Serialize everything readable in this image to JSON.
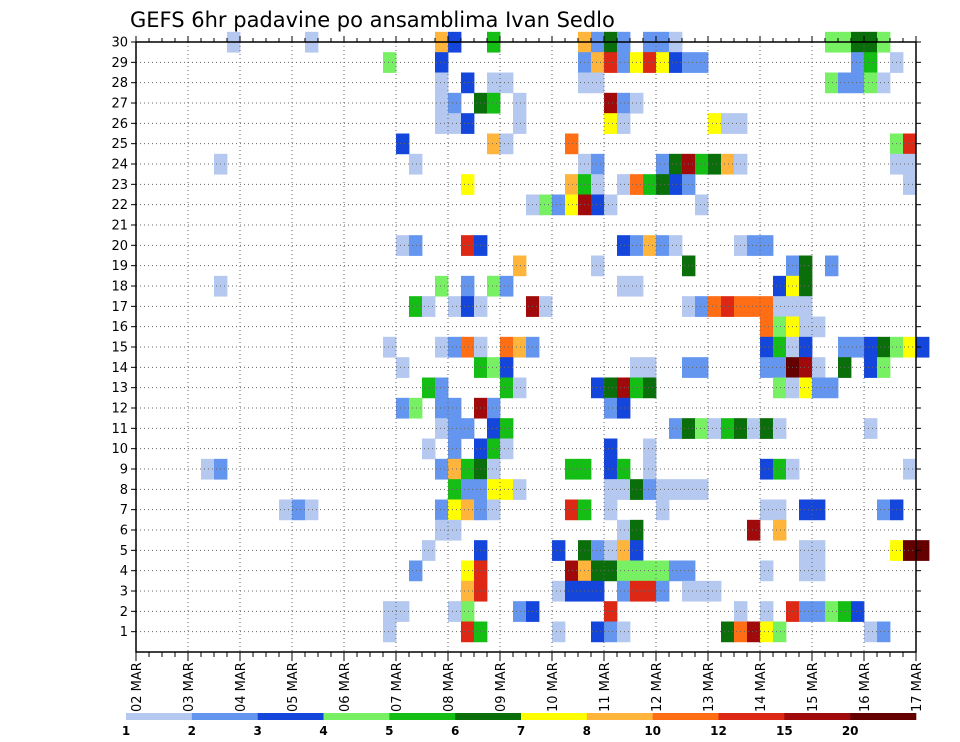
{
  "chart_data": {
    "type": "heatmap",
    "title": "GEFS 6hr padavine po ansamblima Ivan Sedlo",
    "xlabel": "",
    "ylabel": "",
    "x_start": "02 MAR 00Z",
    "x_step_hours": 6,
    "x_steps": 60,
    "x_tick_labels": [
      "02 MAR",
      "03 MAR",
      "04 MAR",
      "05 MAR",
      "06 MAR",
      "07 MAR",
      "08 MAR",
      "09 MAR",
      "10 MAR",
      "11 MAR",
      "12 MAR",
      "13 MAR",
      "14 MAR",
      "15 MAR",
      "16 MAR",
      "17 MAR"
    ],
    "y_tick_labels": [
      "1",
      "2",
      "3",
      "4",
      "5",
      "6",
      "7",
      "8",
      "9",
      "10",
      "11",
      "12",
      "13",
      "14",
      "15",
      "16",
      "17",
      "18",
      "19",
      "20",
      "21",
      "22",
      "23",
      "24",
      "25",
      "26",
      "27",
      "28",
      "29",
      "30"
    ],
    "ylim": [
      0,
      30
    ],
    "grid": true,
    "legend_placement": "bottom",
    "color_scale": {
      "colors": [
        "#b4c8f0",
        "#6496f0",
        "#1446dc",
        "#78f064",
        "#14be14",
        "#0a6e0a",
        "#ffff00",
        "#ffb43c",
        "#ff6e14",
        "#dc2814",
        "#a00a0a",
        "#640000"
      ],
      "labels": [
        "1",
        "2",
        "3",
        "4",
        "5",
        "6",
        "7",
        "8",
        "10",
        "12",
        "15",
        "20"
      ]
    },
    "cells": [
      [
        30,
        7,
        1
      ],
      [
        30,
        13,
        1
      ],
      [
        30,
        23,
        8
      ],
      [
        30,
        24,
        3
      ],
      [
        30,
        27,
        5
      ],
      [
        30,
        34,
        8
      ],
      [
        30,
        35,
        2
      ],
      [
        30,
        36,
        6
      ],
      [
        30,
        37,
        2
      ],
      [
        30,
        39,
        2
      ],
      [
        30,
        40,
        2
      ],
      [
        30,
        41,
        1
      ],
      [
        30,
        53,
        4
      ],
      [
        30,
        54,
        4
      ],
      [
        30,
        55,
        6
      ],
      [
        30,
        56,
        6
      ],
      [
        30,
        57,
        4
      ],
      [
        29,
        19,
        4
      ],
      [
        29,
        23,
        3
      ],
      [
        29,
        34,
        2
      ],
      [
        29,
        35,
        8
      ],
      [
        29,
        36,
        10
      ],
      [
        29,
        37,
        2
      ],
      [
        29,
        38,
        7
      ],
      [
        29,
        39,
        10
      ],
      [
        29,
        40,
        7
      ],
      [
        29,
        41,
        3
      ],
      [
        29,
        42,
        2
      ],
      [
        29,
        43,
        2
      ],
      [
        29,
        55,
        2
      ],
      [
        29,
        56,
        5
      ],
      [
        29,
        58,
        1
      ],
      [
        28,
        23,
        1
      ],
      [
        28,
        25,
        3
      ],
      [
        28,
        27,
        1
      ],
      [
        28,
        28,
        1
      ],
      [
        28,
        34,
        1
      ],
      [
        28,
        35,
        1
      ],
      [
        28,
        53,
        4
      ],
      [
        28,
        54,
        2
      ],
      [
        28,
        55,
        2
      ],
      [
        28,
        56,
        4
      ],
      [
        28,
        57,
        1
      ],
      [
        27,
        23,
        1
      ],
      [
        27,
        24,
        2
      ],
      [
        27,
        26,
        6
      ],
      [
        27,
        27,
        5
      ],
      [
        27,
        29,
        1
      ],
      [
        27,
        36,
        11
      ],
      [
        27,
        37,
        2
      ],
      [
        27,
        38,
        1
      ],
      [
        26,
        23,
        1
      ],
      [
        26,
        24,
        1
      ],
      [
        26,
        25,
        3
      ],
      [
        26,
        29,
        1
      ],
      [
        26,
        36,
        7
      ],
      [
        26,
        37,
        1
      ],
      [
        26,
        44,
        7
      ],
      [
        26,
        45,
        1
      ],
      [
        26,
        46,
        1
      ],
      [
        25,
        20,
        3
      ],
      [
        25,
        27,
        8
      ],
      [
        25,
        28,
        1
      ],
      [
        25,
        33,
        9
      ],
      [
        25,
        58,
        4
      ],
      [
        25,
        59,
        10
      ],
      [
        24,
        6,
        1
      ],
      [
        24,
        21,
        1
      ],
      [
        24,
        34,
        1
      ],
      [
        24,
        35,
        2
      ],
      [
        24,
        40,
        2
      ],
      [
        24,
        41,
        6
      ],
      [
        24,
        42,
        11
      ],
      [
        24,
        43,
        5
      ],
      [
        24,
        44,
        6
      ],
      [
        24,
        45,
        8
      ],
      [
        24,
        46,
        1
      ],
      [
        24,
        58,
        1
      ],
      [
        24,
        59,
        1
      ],
      [
        23,
        25,
        7
      ],
      [
        23,
        33,
        8
      ],
      [
        23,
        34,
        5
      ],
      [
        23,
        35,
        1
      ],
      [
        23,
        37,
        1
      ],
      [
        23,
        38,
        9
      ],
      [
        23,
        39,
        5
      ],
      [
        23,
        40,
        6
      ],
      [
        23,
        41,
        3
      ],
      [
        23,
        42,
        2
      ],
      [
        23,
        59,
        1
      ],
      [
        22,
        30,
        1
      ],
      [
        22,
        31,
        4
      ],
      [
        22,
        32,
        2
      ],
      [
        22,
        33,
        7
      ],
      [
        22,
        34,
        11
      ],
      [
        22,
        35,
        3
      ],
      [
        22,
        36,
        1
      ],
      [
        22,
        43,
        1
      ],
      [
        20,
        20,
        1
      ],
      [
        20,
        21,
        2
      ],
      [
        20,
        25,
        10
      ],
      [
        20,
        26,
        3
      ],
      [
        20,
        37,
        3
      ],
      [
        20,
        38,
        2
      ],
      [
        20,
        39,
        8
      ],
      [
        20,
        40,
        2
      ],
      [
        20,
        41,
        1
      ],
      [
        20,
        46,
        1
      ],
      [
        20,
        47,
        2
      ],
      [
        20,
        48,
        2
      ],
      [
        19,
        29,
        8
      ],
      [
        19,
        35,
        1
      ],
      [
        19,
        42,
        6
      ],
      [
        19,
        50,
        2
      ],
      [
        19,
        51,
        6
      ],
      [
        19,
        53,
        2
      ],
      [
        18,
        6,
        1
      ],
      [
        18,
        23,
        4
      ],
      [
        18,
        25,
        2
      ],
      [
        18,
        27,
        4
      ],
      [
        18,
        28,
        2
      ],
      [
        18,
        37,
        1
      ],
      [
        18,
        38,
        1
      ],
      [
        18,
        49,
        3
      ],
      [
        18,
        50,
        7
      ],
      [
        18,
        51,
        6
      ],
      [
        17,
        21,
        5
      ],
      [
        17,
        22,
        1
      ],
      [
        17,
        24,
        1
      ],
      [
        17,
        25,
        3
      ],
      [
        17,
        26,
        1
      ],
      [
        17,
        30,
        11
      ],
      [
        17,
        31,
        1
      ],
      [
        17,
        42,
        1
      ],
      [
        17,
        43,
        2
      ],
      [
        17,
        44,
        9
      ],
      [
        17,
        45,
        10
      ],
      [
        17,
        46,
        9
      ],
      [
        17,
        47,
        9
      ],
      [
        17,
        48,
        9
      ],
      [
        17,
        49,
        1
      ],
      [
        17,
        50,
        1
      ],
      [
        17,
        51,
        1
      ],
      [
        16,
        48,
        9
      ],
      [
        16,
        49,
        4
      ],
      [
        16,
        50,
        7
      ],
      [
        16,
        51,
        1
      ],
      [
        16,
        52,
        1
      ],
      [
        15,
        19,
        1
      ],
      [
        15,
        23,
        1
      ],
      [
        15,
        24,
        2
      ],
      [
        15,
        25,
        9
      ],
      [
        15,
        26,
        1
      ],
      [
        15,
        28,
        9
      ],
      [
        15,
        29,
        8
      ],
      [
        15,
        30,
        2
      ],
      [
        15,
        48,
        3
      ],
      [
        15,
        49,
        5
      ],
      [
        15,
        50,
        1
      ],
      [
        15,
        51,
        3
      ],
      [
        15,
        54,
        2
      ],
      [
        15,
        55,
        2
      ],
      [
        15,
        56,
        3
      ],
      [
        15,
        57,
        6
      ],
      [
        15,
        58,
        4
      ],
      [
        15,
        59,
        7
      ],
      [
        15,
        60,
        3
      ],
      [
        14,
        20,
        1
      ],
      [
        14,
        26,
        5
      ],
      [
        14,
        27,
        4
      ],
      [
        14,
        28,
        3
      ],
      [
        14,
        38,
        1
      ],
      [
        14,
        39,
        1
      ],
      [
        14,
        42,
        2
      ],
      [
        14,
        43,
        2
      ],
      [
        14,
        48,
        2
      ],
      [
        14,
        49,
        2
      ],
      [
        14,
        50,
        12
      ],
      [
        14,
        51,
        11
      ],
      [
        14,
        52,
        1
      ],
      [
        14,
        54,
        6
      ],
      [
        14,
        56,
        3
      ],
      [
        14,
        57,
        4
      ],
      [
        13,
        22,
        5
      ],
      [
        13,
        23,
        2
      ],
      [
        13,
        28,
        5
      ],
      [
        13,
        29,
        1
      ],
      [
        13,
        35,
        3
      ],
      [
        13,
        36,
        6
      ],
      [
        13,
        37,
        11
      ],
      [
        13,
        38,
        5
      ],
      [
        13,
        39,
        6
      ],
      [
        13,
        49,
        4
      ],
      [
        13,
        50,
        1
      ],
      [
        13,
        51,
        7
      ],
      [
        13,
        52,
        2
      ],
      [
        13,
        53,
        2
      ],
      [
        12,
        20,
        2
      ],
      [
        12,
        21,
        4
      ],
      [
        12,
        23,
        2
      ],
      [
        12,
        24,
        2
      ],
      [
        12,
        26,
        11
      ],
      [
        12,
        27,
        2
      ],
      [
        12,
        36,
        2
      ],
      [
        12,
        37,
        3
      ],
      [
        11,
        23,
        1
      ],
      [
        11,
        24,
        2
      ],
      [
        11,
        25,
        2
      ],
      [
        11,
        27,
        3
      ],
      [
        11,
        28,
        5
      ],
      [
        11,
        41,
        2
      ],
      [
        11,
        42,
        6
      ],
      [
        11,
        43,
        4
      ],
      [
        11,
        44,
        1
      ],
      [
        11,
        45,
        5
      ],
      [
        11,
        46,
        6
      ],
      [
        11,
        47,
        1
      ],
      [
        11,
        48,
        6
      ],
      [
        11,
        49,
        1
      ],
      [
        11,
        56,
        1
      ],
      [
        10,
        22,
        1
      ],
      [
        10,
        24,
        2
      ],
      [
        10,
        26,
        3
      ],
      [
        10,
        27,
        5
      ],
      [
        10,
        28,
        1
      ],
      [
        10,
        36,
        3
      ],
      [
        10,
        39,
        1
      ],
      [
        9,
        5,
        1
      ],
      [
        9,
        6,
        2
      ],
      [
        9,
        23,
        2
      ],
      [
        9,
        24,
        8
      ],
      [
        9,
        25,
        5
      ],
      [
        9,
        26,
        6
      ],
      [
        9,
        27,
        1
      ],
      [
        9,
        33,
        5
      ],
      [
        9,
        34,
        5
      ],
      [
        9,
        36,
        3
      ],
      [
        9,
        37,
        5
      ],
      [
        9,
        39,
        1
      ],
      [
        9,
        48,
        3
      ],
      [
        9,
        49,
        5
      ],
      [
        9,
        50,
        1
      ],
      [
        9,
        59,
        1
      ],
      [
        8,
        24,
        5
      ],
      [
        8,
        25,
        2
      ],
      [
        8,
        26,
        2
      ],
      [
        8,
        27,
        7
      ],
      [
        8,
        28,
        7
      ],
      [
        8,
        29,
        1
      ],
      [
        8,
        36,
        1
      ],
      [
        8,
        37,
        1
      ],
      [
        8,
        38,
        6
      ],
      [
        8,
        39,
        2
      ],
      [
        8,
        40,
        1
      ],
      [
        8,
        41,
        1
      ],
      [
        8,
        42,
        1
      ],
      [
        8,
        43,
        1
      ],
      [
        7,
        11,
        1
      ],
      [
        7,
        12,
        2
      ],
      [
        7,
        13,
        1
      ],
      [
        7,
        23,
        2
      ],
      [
        7,
        24,
        7
      ],
      [
        7,
        25,
        8
      ],
      [
        7,
        26,
        2
      ],
      [
        7,
        27,
        1
      ],
      [
        7,
        33,
        10
      ],
      [
        7,
        34,
        5
      ],
      [
        7,
        36,
        1
      ],
      [
        7,
        40,
        1
      ],
      [
        7,
        48,
        1
      ],
      [
        7,
        49,
        1
      ],
      [
        7,
        51,
        3
      ],
      [
        7,
        52,
        3
      ],
      [
        7,
        57,
        2
      ],
      [
        7,
        58,
        3
      ],
      [
        6,
        23,
        1
      ],
      [
        6,
        24,
        1
      ],
      [
        6,
        37,
        1
      ],
      [
        6,
        38,
        6
      ],
      [
        6,
        47,
        11
      ],
      [
        6,
        49,
        8
      ],
      [
        5,
        22,
        1
      ],
      [
        5,
        26,
        3
      ],
      [
        5,
        32,
        3
      ],
      [
        5,
        34,
        6
      ],
      [
        5,
        35,
        2
      ],
      [
        5,
        36,
        1
      ],
      [
        5,
        37,
        8
      ],
      [
        5,
        38,
        3
      ],
      [
        5,
        51,
        1
      ],
      [
        5,
        52,
        1
      ],
      [
        5,
        58,
        7
      ],
      [
        5,
        59,
        12
      ],
      [
        5,
        60,
        12
      ],
      [
        4,
        21,
        2
      ],
      [
        4,
        25,
        7
      ],
      [
        4,
        26,
        10
      ],
      [
        4,
        33,
        11
      ],
      [
        4,
        34,
        8
      ],
      [
        4,
        35,
        6
      ],
      [
        4,
        36,
        6
      ],
      [
        4,
        37,
        4
      ],
      [
        4,
        38,
        4
      ],
      [
        4,
        39,
        4
      ],
      [
        4,
        40,
        4
      ],
      [
        4,
        41,
        2
      ],
      [
        4,
        42,
        2
      ],
      [
        4,
        48,
        1
      ],
      [
        4,
        51,
        1
      ],
      [
        4,
        52,
        1
      ],
      [
        3,
        25,
        8
      ],
      [
        3,
        26,
        10
      ],
      [
        3,
        32,
        1
      ],
      [
        3,
        33,
        3
      ],
      [
        3,
        34,
        3
      ],
      [
        3,
        35,
        3
      ],
      [
        3,
        37,
        2
      ],
      [
        3,
        38,
        10
      ],
      [
        3,
        39,
        10
      ],
      [
        3,
        40,
        2
      ],
      [
        3,
        42,
        1
      ],
      [
        3,
        43,
        1
      ],
      [
        3,
        44,
        1
      ],
      [
        2,
        19,
        1
      ],
      [
        2,
        20,
        1
      ],
      [
        2,
        24,
        1
      ],
      [
        2,
        25,
        4
      ],
      [
        2,
        29,
        2
      ],
      [
        2,
        30,
        3
      ],
      [
        2,
        36,
        10
      ],
      [
        2,
        46,
        1
      ],
      [
        2,
        48,
        1
      ],
      [
        2,
        50,
        10
      ],
      [
        2,
        51,
        2
      ],
      [
        2,
        52,
        2
      ],
      [
        2,
        53,
        4
      ],
      [
        2,
        54,
        5
      ],
      [
        2,
        55,
        3
      ],
      [
        1,
        19,
        1
      ],
      [
        1,
        25,
        10
      ],
      [
        1,
        26,
        5
      ],
      [
        1,
        32,
        1
      ],
      [
        1,
        35,
        3
      ],
      [
        1,
        36,
        2
      ],
      [
        1,
        37,
        1
      ],
      [
        1,
        45,
        6
      ],
      [
        1,
        46,
        9
      ],
      [
        1,
        47,
        11
      ],
      [
        1,
        48,
        7
      ],
      [
        1,
        49,
        4
      ],
      [
        1,
        56,
        1
      ],
      [
        1,
        57,
        2
      ]
    ]
  }
}
